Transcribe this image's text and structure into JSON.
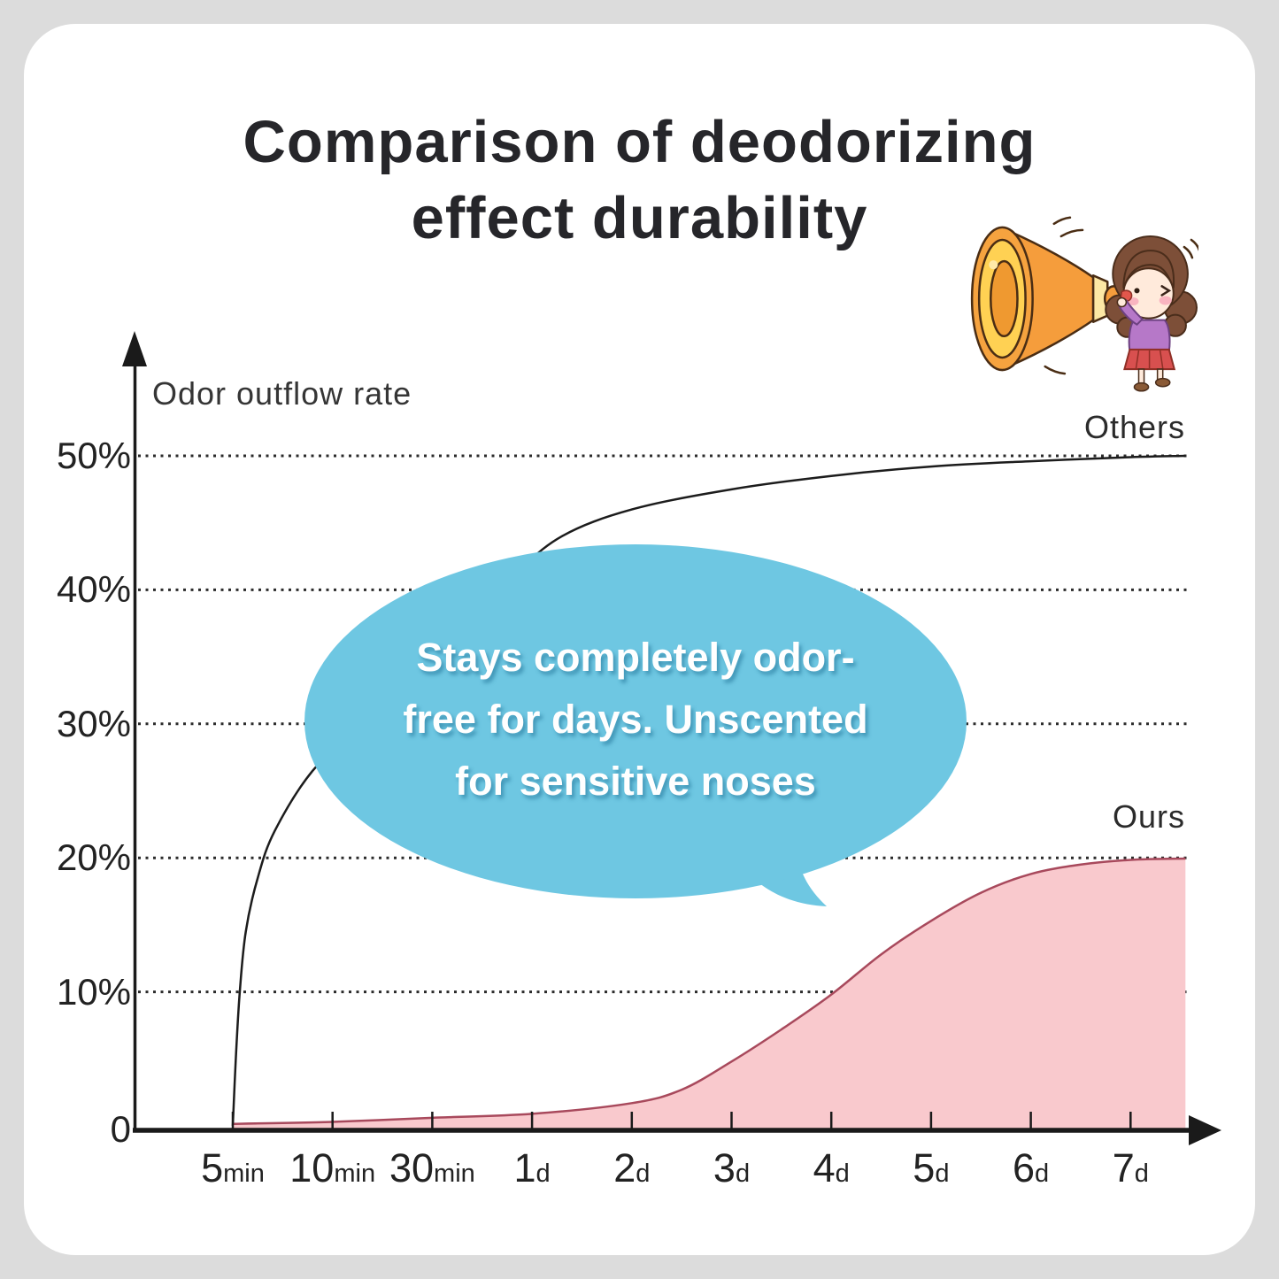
{
  "page": {
    "background": "#dcdcdc",
    "card_background": "#ffffff"
  },
  "title": {
    "line1": "Comparison of deodorizing",
    "line2": "effect durability",
    "color": "#26262a"
  },
  "illustration": {
    "name": "girl-shouting-into-megaphone"
  },
  "bubble": {
    "lines": [
      "Stays completely odor-",
      "free for days. Unscented",
      "for sensitive noses"
    ],
    "fill": "#6ec7e2",
    "text_color": "#ffffff"
  },
  "chart_data": {
    "type": "area",
    "title": "Comparison of deodorizing effect durability",
    "ylabel": "Odor outflow rate",
    "origin_label": "0",
    "ylim": [
      0,
      55
    ],
    "grid": "dotted-horizontal",
    "x_ticks": [
      {
        "label": "5min",
        "value": "5",
        "unit": "min"
      },
      {
        "label": "10min",
        "value": "10",
        "unit": "min"
      },
      {
        "label": "30min",
        "value": "30",
        "unit": "min"
      },
      {
        "label": "1d",
        "value": "1",
        "unit": "d"
      },
      {
        "label": "2d",
        "value": "2",
        "unit": "d"
      },
      {
        "label": "3d",
        "value": "3",
        "unit": "d"
      },
      {
        "label": "4d",
        "value": "4",
        "unit": "d"
      },
      {
        "label": "5d",
        "value": "5",
        "unit": "d"
      },
      {
        "label": "6d",
        "value": "6",
        "unit": "d"
      },
      {
        "label": "7d",
        "value": "7",
        "unit": "d"
      }
    ],
    "y_ticks": [
      {
        "percent": 50,
        "label": "50%"
      },
      {
        "percent": 40,
        "label": "40%"
      },
      {
        "percent": 30,
        "label": "30%"
      },
      {
        "percent": 20,
        "label": "20%"
      },
      {
        "percent": 10,
        "label": "10%"
      }
    ],
    "series": [
      {
        "name": "others",
        "label": "Others",
        "type": "line",
        "line_color": "#1c1c1c",
        "points": [
          [
            0,
            0
          ],
          [
            0.03,
            5
          ],
          [
            0.07,
            10
          ],
          [
            0.13,
            14.5
          ],
          [
            0.25,
            18.5
          ],
          [
            0.42,
            22
          ],
          [
            0.8,
            26.5
          ],
          [
            1.3,
            30
          ],
          [
            2,
            35.5
          ],
          [
            2.8,
            41
          ],
          [
            3.3,
            44
          ],
          [
            4,
            46
          ],
          [
            5,
            47.5
          ],
          [
            6,
            48.5
          ],
          [
            7,
            49.2
          ],
          [
            8,
            49.6
          ],
          [
            9,
            49.9
          ],
          [
            9.55,
            50
          ]
        ]
      },
      {
        "name": "ours",
        "label": "Ours",
        "type": "area",
        "line_color": "#a8495c",
        "fill_color": "#f9c9cd",
        "points": [
          [
            0,
            0.15
          ],
          [
            1,
            0.3
          ],
          [
            2,
            0.6
          ],
          [
            3,
            0.9
          ],
          [
            4,
            1.7
          ],
          [
            4.5,
            2.7
          ],
          [
            5,
            4.8
          ],
          [
            5.5,
            7.2
          ],
          [
            6,
            9.8
          ],
          [
            6.5,
            12.8
          ],
          [
            7,
            15.3
          ],
          [
            7.5,
            17.4
          ],
          [
            8,
            18.8
          ],
          [
            8.5,
            19.5
          ],
          [
            9,
            19.85
          ],
          [
            9.55,
            19.95
          ]
        ]
      }
    ]
  }
}
